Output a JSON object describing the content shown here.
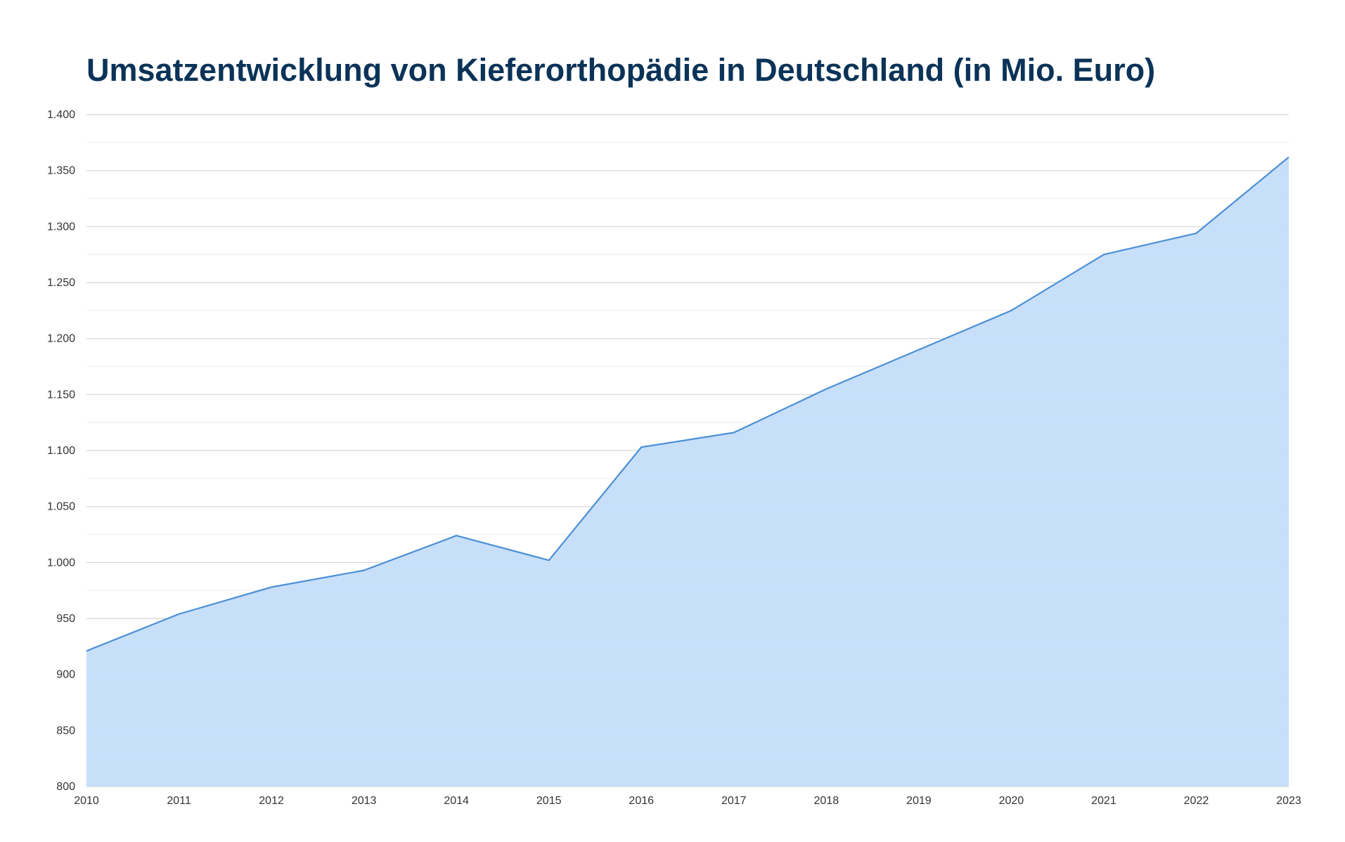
{
  "colors": {
    "title": "#0b3358",
    "line": "#4a8fd6",
    "area": "#c3dcfa",
    "grid_major": "#d4d4d4",
    "grid_minor": "#ececec"
  },
  "chart_data": {
    "type": "area",
    "title": "Umsatzentwicklung von Kieferorthopädie in Deutschland (in Mio. Euro)",
    "xlabel": "",
    "ylabel": "",
    "x": [
      "2010",
      "2011",
      "2012",
      "2013",
      "2014",
      "2015",
      "2016",
      "2017",
      "2018",
      "2019",
      "2020",
      "2021",
      "2022",
      "2023"
    ],
    "series": [
      {
        "values": [
          921,
          954,
          978,
          993,
          1024,
          1002,
          1103,
          1116,
          1155,
          1190,
          1225,
          1275,
          1294,
          1362
        ]
      }
    ],
    "ylim": [
      800,
      1400
    ],
    "yticks": [
      800,
      850,
      900,
      950,
      1000,
      1050,
      1100,
      1150,
      1200,
      1250,
      1300,
      1350,
      1400
    ],
    "ytick_labels": [
      "800",
      "850",
      "900",
      "950",
      "1.000",
      "1.050",
      "1.100",
      "1.150",
      "1.200",
      "1.250",
      "1.300",
      "1.350",
      "1.400"
    ],
    "grid": true,
    "legend": "none"
  }
}
